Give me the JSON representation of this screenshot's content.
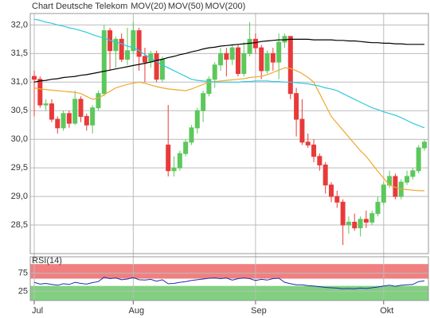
{
  "chart_data": [
    {
      "type": "candlestick",
      "title": "Chart Deutsche Telekom",
      "title_color": "#e8301c",
      "categories": [
        "Jul",
        null,
        null,
        null,
        null,
        null,
        null,
        null,
        null,
        null,
        null,
        null,
        null,
        null,
        null,
        null,
        null,
        "Aug",
        null,
        null,
        null,
        null,
        null,
        null,
        null,
        null,
        null,
        null,
        null,
        null,
        null,
        null,
        null,
        null,
        null,
        null,
        null,
        null,
        "Sep",
        null,
        null,
        null,
        null,
        null,
        null,
        null,
        null,
        null,
        null,
        null,
        null,
        null,
        null,
        null,
        null,
        null,
        null,
        null,
        null,
        null,
        "Okt",
        null,
        null,
        null,
        null,
        null,
        null,
        null
      ],
      "open": [
        31.1,
        31.05,
        30.6,
        30.62,
        30.35,
        30.2,
        30.45,
        30.28,
        30.7,
        30.4,
        30.25,
        30.55,
        30.8,
        31.9,
        31.55,
        31.75,
        31.4,
        31.55,
        31.9,
        31.45,
        31.35,
        31.5,
        31.05,
        29.9,
        29.45,
        29.5,
        29.75,
        29.95,
        30.2,
        30.5,
        30.8,
        31.05,
        31.3,
        31.5,
        31.4,
        31.6,
        31.15,
        31.5,
        31.75,
        31.6,
        31.2,
        31.5,
        31.35,
        31.7,
        31.8,
        30.8,
        30.35,
        29.95,
        29.9,
        29.7,
        29.55,
        29.2,
        29.0,
        28.9,
        28.5,
        28.55,
        28.45,
        28.6,
        28.55,
        28.7,
        28.9,
        29.2,
        29.35,
        29.0,
        29.25,
        29.35,
        29.45,
        29.85
      ],
      "high": [
        31.2,
        31.1,
        30.7,
        30.7,
        30.4,
        30.5,
        30.5,
        30.85,
        30.75,
        30.45,
        30.6,
        30.85,
        32.0,
        31.95,
        31.8,
        31.85,
        31.95,
        32.05,
        31.95,
        31.6,
        31.55,
        31.55,
        31.45,
        30.6,
        29.7,
        29.8,
        30.0,
        30.25,
        30.55,
        30.85,
        31.1,
        31.35,
        31.6,
        31.6,
        31.65,
        31.65,
        31.7,
        32.05,
        31.85,
        31.65,
        31.55,
        31.6,
        31.85,
        31.85,
        31.8,
        30.9,
        30.7,
        30.1,
        30.0,
        29.75,
        29.6,
        29.25,
        29.1,
        28.95,
        28.65,
        28.7,
        28.65,
        28.75,
        28.75,
        29.0,
        29.25,
        29.45,
        29.4,
        29.3,
        29.45,
        29.5,
        29.9,
        30.0
      ],
      "low": [
        30.4,
        30.55,
        30.5,
        30.3,
        30.1,
        30.15,
        30.2,
        30.25,
        30.3,
        30.15,
        30.1,
        30.5,
        30.75,
        31.2,
        31.25,
        31.35,
        31.3,
        31.5,
        31.2,
        31.0,
        31.25,
        31.0,
        31.0,
        29.35,
        29.35,
        29.45,
        29.7,
        29.9,
        30.1,
        30.3,
        30.75,
        30.9,
        31.2,
        31.1,
        31.3,
        31.1,
        31.1,
        31.45,
        31.5,
        31.05,
        31.15,
        31.2,
        31.05,
        31.6,
        30.7,
        30.05,
        29.9,
        29.85,
        29.6,
        29.45,
        29.05,
        28.9,
        28.8,
        28.15,
        28.35,
        28.4,
        28.3,
        28.45,
        28.5,
        28.65,
        28.85,
        29.15,
        28.95,
        28.95,
        29.2,
        29.3,
        29.4,
        29.8
      ],
      "close": [
        31.05,
        30.6,
        30.62,
        30.35,
        30.2,
        30.45,
        30.28,
        30.7,
        30.4,
        30.25,
        30.55,
        30.8,
        31.9,
        31.55,
        31.75,
        31.4,
        31.55,
        31.9,
        31.45,
        31.35,
        31.5,
        31.05,
        31.4,
        29.45,
        29.5,
        29.75,
        29.95,
        30.2,
        30.5,
        30.8,
        31.05,
        31.3,
        31.5,
        31.4,
        31.6,
        31.15,
        31.5,
        31.75,
        31.6,
        31.2,
        31.5,
        31.35,
        31.7,
        31.8,
        30.8,
        30.35,
        29.95,
        29.9,
        29.7,
        29.55,
        29.2,
        29.0,
        28.9,
        28.5,
        28.55,
        28.45,
        28.6,
        28.55,
        28.7,
        28.9,
        29.2,
        29.35,
        29.0,
        29.25,
        29.35,
        29.45,
        29.85,
        29.95
      ],
      "up_color": "#5cc85c",
      "down_color": "#e83a3a",
      "series": [
        {
          "name": "MOV(20)",
          "color": "#f0a830",
          "values": [
            30.9,
            30.88,
            30.87,
            30.86,
            30.85,
            30.84,
            30.83,
            30.82,
            30.8,
            30.75,
            30.7,
            30.72,
            30.78,
            30.84,
            30.9,
            30.93,
            30.96,
            30.98,
            31.0,
            30.98,
            30.95,
            30.92,
            30.9,
            30.88,
            30.87,
            30.86,
            30.85,
            30.88,
            30.92,
            30.96,
            31.0,
            31.01,
            31.02,
            31.03,
            31.04,
            31.05,
            31.06,
            31.08,
            31.09,
            31.1,
            31.13,
            31.17,
            31.21,
            31.25,
            31.24,
            31.2,
            31.15,
            31.08,
            31.0,
            30.8,
            30.6,
            30.4,
            30.28,
            30.16,
            30.04,
            29.92,
            29.8,
            29.7,
            29.57,
            29.44,
            29.32,
            29.2,
            29.16,
            29.13,
            29.12,
            29.11,
            29.1,
            29.1
          ]
        },
        {
          "name": "MOV(50)",
          "color": "#30c8e0",
          "values": [
            32.1,
            32.08,
            32.05,
            32.03,
            32.0,
            31.98,
            31.95,
            31.93,
            31.9,
            31.87,
            31.83,
            31.8,
            31.77,
            31.73,
            31.7,
            31.67,
            31.63,
            31.6,
            31.55,
            31.48,
            31.42,
            31.36,
            31.3,
            31.25,
            31.2,
            31.15,
            31.1,
            31.05,
            31.03,
            31.02,
            31.01,
            31.0,
            31.0,
            31.0,
            31.0,
            31.0,
            31.01,
            31.01,
            31.02,
            31.02,
            31.02,
            31.01,
            31.01,
            31.0,
            31.0,
            30.99,
            30.98,
            30.97,
            30.95,
            30.93,
            30.9,
            30.88,
            30.85,
            30.8,
            30.75,
            30.7,
            30.65,
            30.6,
            30.55,
            30.52,
            30.48,
            30.45,
            30.42,
            30.38,
            30.33,
            30.28,
            30.24,
            30.2
          ]
        },
        {
          "name": "MOV(200)",
          "color": "#000000",
          "values": [
            31.0,
            31.02,
            31.03,
            31.05,
            31.06,
            31.08,
            31.09,
            31.1,
            31.12,
            31.13,
            31.15,
            31.17,
            31.19,
            31.21,
            31.23,
            31.25,
            31.27,
            31.29,
            31.31,
            31.33,
            31.35,
            31.38,
            31.4,
            31.43,
            31.45,
            31.48,
            31.5,
            31.53,
            31.55,
            31.58,
            31.6,
            31.61,
            31.63,
            31.64,
            31.65,
            31.66,
            31.67,
            31.68,
            31.69,
            31.71,
            31.72,
            31.73,
            31.74,
            31.74,
            31.75,
            31.75,
            31.75,
            31.75,
            31.74,
            31.74,
            31.74,
            31.74,
            31.73,
            31.73,
            31.72,
            31.72,
            31.71,
            31.7,
            31.69,
            31.69,
            31.68,
            31.68,
            31.67,
            31.67,
            31.66,
            31.66,
            31.66,
            31.66
          ]
        }
      ],
      "ylim": [
        28.0,
        32.2
      ],
      "yticks": [
        {
          "value": 28.5,
          "label": "28,5"
        },
        {
          "value": 29.0,
          "label": "29,0"
        },
        {
          "value": 29.5,
          "label": "29,5"
        },
        {
          "value": 30.0,
          "label": "30,0"
        },
        {
          "value": 30.5,
          "label": "30,5"
        },
        {
          "value": 31.0,
          "label": "31,0"
        },
        {
          "value": 31.5,
          "label": "31,5"
        },
        {
          "value": 32.0,
          "label": "32,0"
        }
      ],
      "grid": true
    },
    {
      "type": "line",
      "title": "RSI(14)",
      "series": [
        {
          "name": "RSI(14)",
          "color": "#1a2fb0",
          "values": [
            50,
            45,
            47,
            44,
            42,
            46,
            44,
            50,
            47,
            45,
            49,
            52,
            64,
            60,
            62,
            57,
            59,
            63,
            57,
            56,
            58,
            53,
            57,
            46,
            47,
            50,
            52,
            55,
            57,
            59,
            61,
            62,
            60,
            62,
            56,
            60,
            62,
            60,
            55,
            58,
            56,
            60,
            61,
            50,
            46,
            43,
            43,
            41,
            40,
            38,
            36,
            35,
            34,
            32,
            33,
            32,
            34,
            33,
            35,
            37,
            40,
            42,
            39,
            42,
            43,
            44,
            52,
            54
          ]
        }
      ],
      "ylim": [
        0,
        120
      ],
      "yticks": [
        25,
        75
      ],
      "upper_zone": [
        60,
        100
      ],
      "upper_zone_color": "#f08080",
      "lower_zone": [
        0,
        40
      ],
      "lower_zone_color": "#80d080",
      "grid": true
    }
  ]
}
